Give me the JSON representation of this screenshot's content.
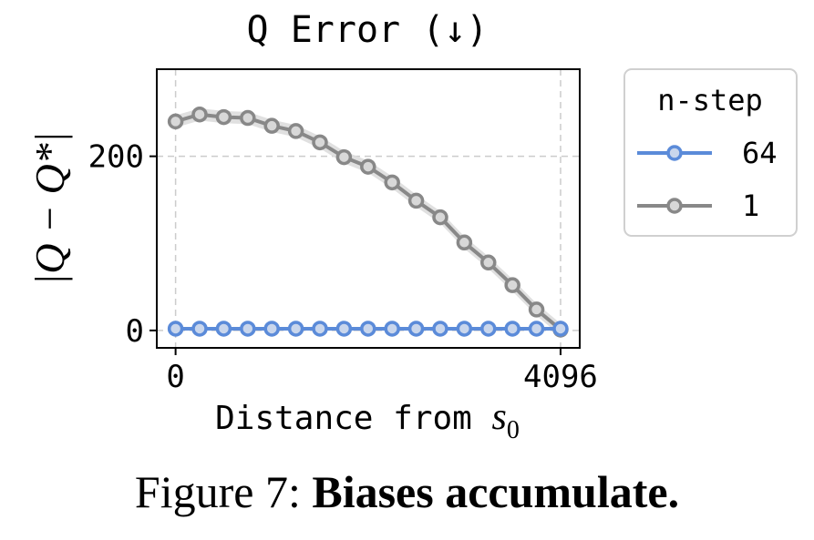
{
  "chart_data": {
    "type": "line",
    "title": "Q Error (↓)",
    "xlabel_text": "Distance from ",
    "xlabel_math": "s",
    "xlabel_math_sub": "0",
    "ylabel": "|Q − Q*|",
    "xlim": [
      -200,
      4300
    ],
    "ylim": [
      -20,
      300
    ],
    "xticks": [
      0,
      4096
    ],
    "xtick_labels": [
      "0",
      "4096"
    ],
    "yticks": [
      0,
      200
    ],
    "ytick_labels": [
      "0",
      "200"
    ],
    "grid": true,
    "legend": {
      "title": "n-step",
      "placement": "outside-right-top",
      "entries": [
        "64",
        "1"
      ]
    },
    "x": [
      0,
      256,
      512,
      768,
      1024,
      1280,
      1536,
      1792,
      2048,
      2304,
      2560,
      2816,
      3072,
      3328,
      3584,
      3840,
      4096
    ],
    "series": [
      {
        "name": "64",
        "color": "#5b8bd9",
        "marker_fill": "#c9d6ec",
        "values": [
          2,
          2,
          2,
          2,
          2,
          2,
          2,
          2,
          2,
          2,
          2,
          2,
          2,
          2,
          2,
          2,
          2
        ]
      },
      {
        "name": "1",
        "color": "#888888",
        "band_color": "#dddddd",
        "band": 7,
        "marker_fill": "#d8d8d8",
        "values": [
          240,
          248,
          245,
          244,
          235,
          229,
          216,
          199,
          188,
          170,
          149,
          130,
          101,
          78,
          52,
          24,
          1
        ]
      }
    ]
  },
  "caption": {
    "label": "Figure 7:",
    "text": "Biases accumulate."
  }
}
